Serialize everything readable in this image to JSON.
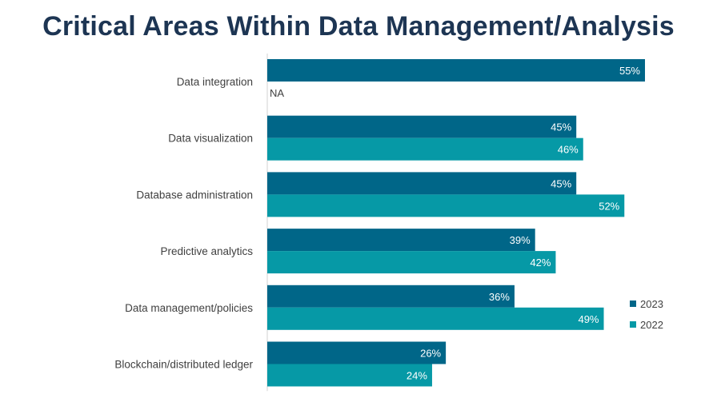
{
  "title": "Critical Areas Within Data Management/Analysis",
  "colors": {
    "series_2023": "#006688",
    "series_2022": "#0699a6",
    "axis": "#d0d0d0",
    "title": "#1d3553"
  },
  "chart_data": {
    "type": "bar",
    "orientation": "horizontal",
    "title": "Critical Areas Within Data Management/Analysis",
    "xlabel": "",
    "ylabel": "",
    "xlim": [
      0,
      60
    ],
    "grid": false,
    "legend_position": "right",
    "categories": [
      "Data integration",
      "Data visualization",
      "Database administration",
      "Predictive analytics",
      "Data management/policies",
      "Blockchain/distributed ledger"
    ],
    "series": [
      {
        "name": "2023",
        "values": [
          55,
          45,
          45,
          39,
          36,
          26
        ],
        "labels": [
          "55%",
          "45%",
          "45%",
          "39%",
          "36%",
          "26%"
        ]
      },
      {
        "name": "2022",
        "values": [
          null,
          46,
          52,
          42,
          49,
          24
        ],
        "labels": [
          "NA",
          "46%",
          "52%",
          "42%",
          "49%",
          "24%"
        ]
      }
    ]
  }
}
